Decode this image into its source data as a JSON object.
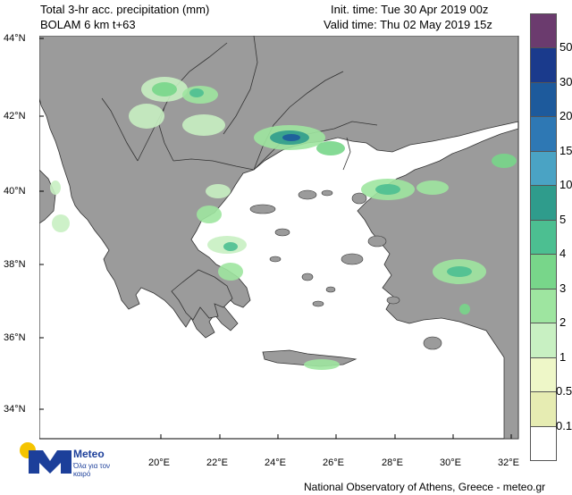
{
  "header": {
    "title_line1": "Total 3-hr acc. precipitation (mm)",
    "title_line2": "BOLAM 6 km t+63",
    "init_time": "Init. time: Tue 30 Apr 2019 00z",
    "valid_time": "Valid time: Thu 02 May 2019 15z"
  },
  "axes": {
    "lat_labels": [
      "44°N",
      "42°N",
      "40°N",
      "38°N",
      "36°N",
      "34°N"
    ],
    "lon_labels": [
      "20°E",
      "22°E",
      "24°E",
      "26°E",
      "28°E",
      "30°E",
      "32°E"
    ]
  },
  "colorbar": {
    "labels": [
      "50",
      "30",
      "20",
      "15",
      "10",
      "5",
      "4",
      "3",
      "2",
      "1",
      "0.5",
      "0.1"
    ],
    "colors": [
      "#6b3b6e",
      "#1a3a8c",
      "#1d5a9c",
      "#2e78b4",
      "#4aa3c4",
      "#2f9c8c",
      "#4cbf91",
      "#78d68a",
      "#9ee5a0",
      "#c8f0c2",
      "#eef7c8",
      "#e6ecb2",
      "#ffffff"
    ]
  },
  "logo": {
    "name": "Meteo",
    "tagline": "Όλα για τον καιρό"
  },
  "credit": "National Observatory of Athens, Greece - meteo.gr",
  "colors": {
    "land": "#9b9b9b",
    "sea": "#ffffff",
    "border": "#333333"
  }
}
